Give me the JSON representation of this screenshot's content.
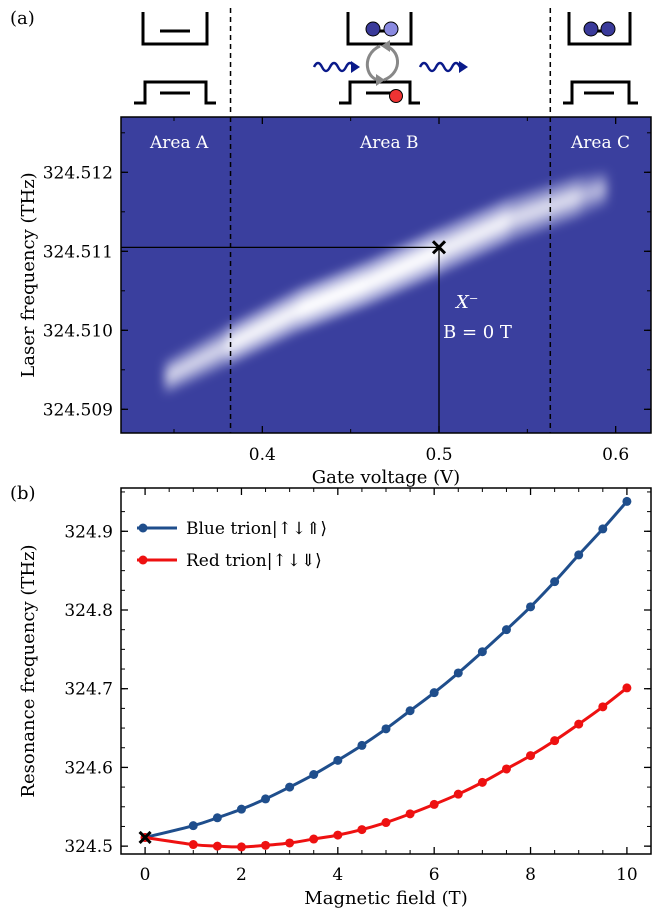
{
  "chart_data": [
    {
      "panel_label": "(a)",
      "type": "heatmap",
      "xlabel": "Gate voltage (V)",
      "ylabel": "Laser frequency (THz)",
      "xlim": [
        0.32,
        0.62
      ],
      "ylim": [
        324.5087,
        324.5127
      ],
      "xticks": [
        0.4,
        0.5,
        0.6
      ],
      "xtick_labels": [
        "0.4",
        "0.5",
        "0.6"
      ],
      "yticks": [
        324.509,
        324.51,
        324.511,
        324.512
      ],
      "ytick_labels": [
        "324.509",
        "324.510",
        "324.511",
        "324.512"
      ],
      "background_color": "#3a3f9e",
      "peak_color": "#ffffff",
      "resonance_band": {
        "x": [
          0.345,
          0.38,
          0.42,
          0.46,
          0.5,
          0.54,
          0.58,
          0.595
        ],
        "center_y": [
          324.5094,
          324.5098,
          324.51025,
          324.5106,
          324.511,
          324.5114,
          324.5117,
          324.5118
        ],
        "halfwidth": [
          0.0002,
          0.00024,
          0.00026,
          0.00027,
          0.00028,
          0.00027,
          0.00025,
          0.0002
        ],
        "intensity": [
          0.45,
          0.8,
          0.95,
          1.0,
          0.9,
          0.75,
          0.55,
          0.35
        ]
      },
      "area_boundaries_x": [
        0.382,
        0.563
      ],
      "areas": [
        "Area A",
        "Area B",
        "Area C"
      ],
      "marker": {
        "x": 0.5,
        "y": 324.51105
      },
      "annotation_line1": "X⁻",
      "annotation_line2": "B = 0 T"
    },
    {
      "panel_label": "(b)",
      "type": "line",
      "xlabel": "Magnetic field (T)",
      "ylabel": "Resonance frequency (THz)",
      "xlim": [
        -0.5,
        10.5
      ],
      "ylim": [
        324.49,
        324.955
      ],
      "xticks": [
        0,
        2,
        4,
        6,
        8,
        10
      ],
      "xtick_labels": [
        "0",
        "2",
        "4",
        "6",
        "8",
        "10"
      ],
      "yticks": [
        324.5,
        324.6,
        324.7,
        324.8,
        324.9
      ],
      "ytick_labels": [
        "324.5",
        "324.6",
        "324.7",
        "324.8",
        "324.9"
      ],
      "legend_position": "top-left",
      "series": [
        {
          "name": "Blue trion|↑↓⇑⟩",
          "color": "#1f4e8c",
          "x": [
            0,
            1,
            1.5,
            2,
            2.5,
            3,
            3.5,
            4,
            4.5,
            5,
            5.5,
            6,
            6.5,
            7,
            7.5,
            8,
            8.5,
            9,
            9.5,
            10
          ],
          "y": [
            324.511,
            324.526,
            324.536,
            324.547,
            324.56,
            324.575,
            324.591,
            324.609,
            324.628,
            324.649,
            324.672,
            324.695,
            324.72,
            324.747,
            324.775,
            324.804,
            324.836,
            324.87,
            324.903,
            324.938
          ]
        },
        {
          "name": "Red trion|↑↓⇓⟩",
          "color": "#ee1111",
          "x": [
            0,
            1,
            1.5,
            2,
            2.5,
            3,
            3.5,
            4,
            4.5,
            5,
            5.5,
            6,
            6.5,
            7,
            7.5,
            8,
            8.5,
            9,
            9.5,
            10
          ],
          "y": [
            324.511,
            324.502,
            324.5,
            324.499,
            324.501,
            324.504,
            324.509,
            324.514,
            324.521,
            324.53,
            324.541,
            324.553,
            324.566,
            324.581,
            324.598,
            324.615,
            324.634,
            324.655,
            324.677,
            324.701
          ]
        }
      ],
      "marker": {
        "x": 0,
        "y": 324.511
      }
    }
  ]
}
